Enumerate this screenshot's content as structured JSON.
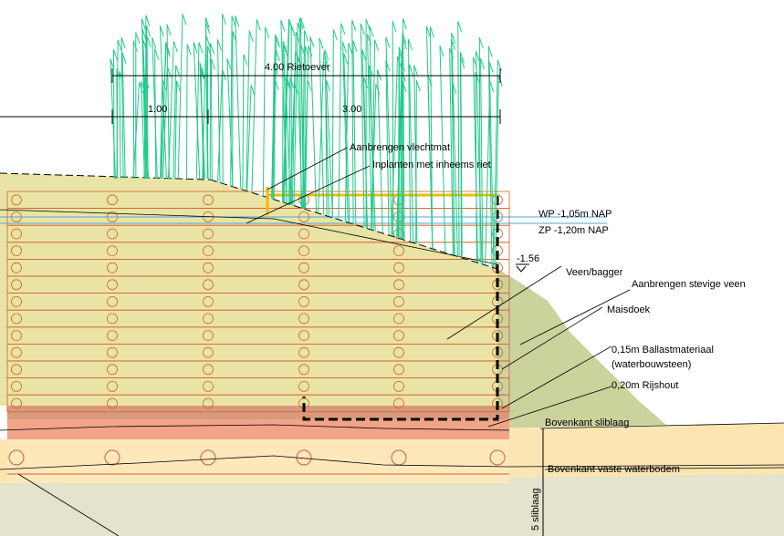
{
  "dimensions": {
    "total": "4.00 Rietoever",
    "left": "1.00",
    "right": "3.00"
  },
  "labels": {
    "vlechtmat": "Aanbrengen vlechtmat",
    "riet": "Inplanten met inheems riet",
    "wp": "WP -1,05m NAP",
    "zp": "ZP -1,20m NAP",
    "level": "-1.56",
    "veen": "Veen/bagger",
    "stevige_veen": "Aanbrengen stevige veen",
    "maisdoek": "Maisdoek",
    "ballast": "0,15m Ballastmateriaal",
    "ballast_sub": "(waterbouwsteen)",
    "rijshout": "0,20m Rijshout",
    "sliblaag": "Bovenkant sliblaag",
    "vaste_bodem": "Bovenkant vaste waterbodem",
    "slib_dim": "5 sliblaag"
  }
}
